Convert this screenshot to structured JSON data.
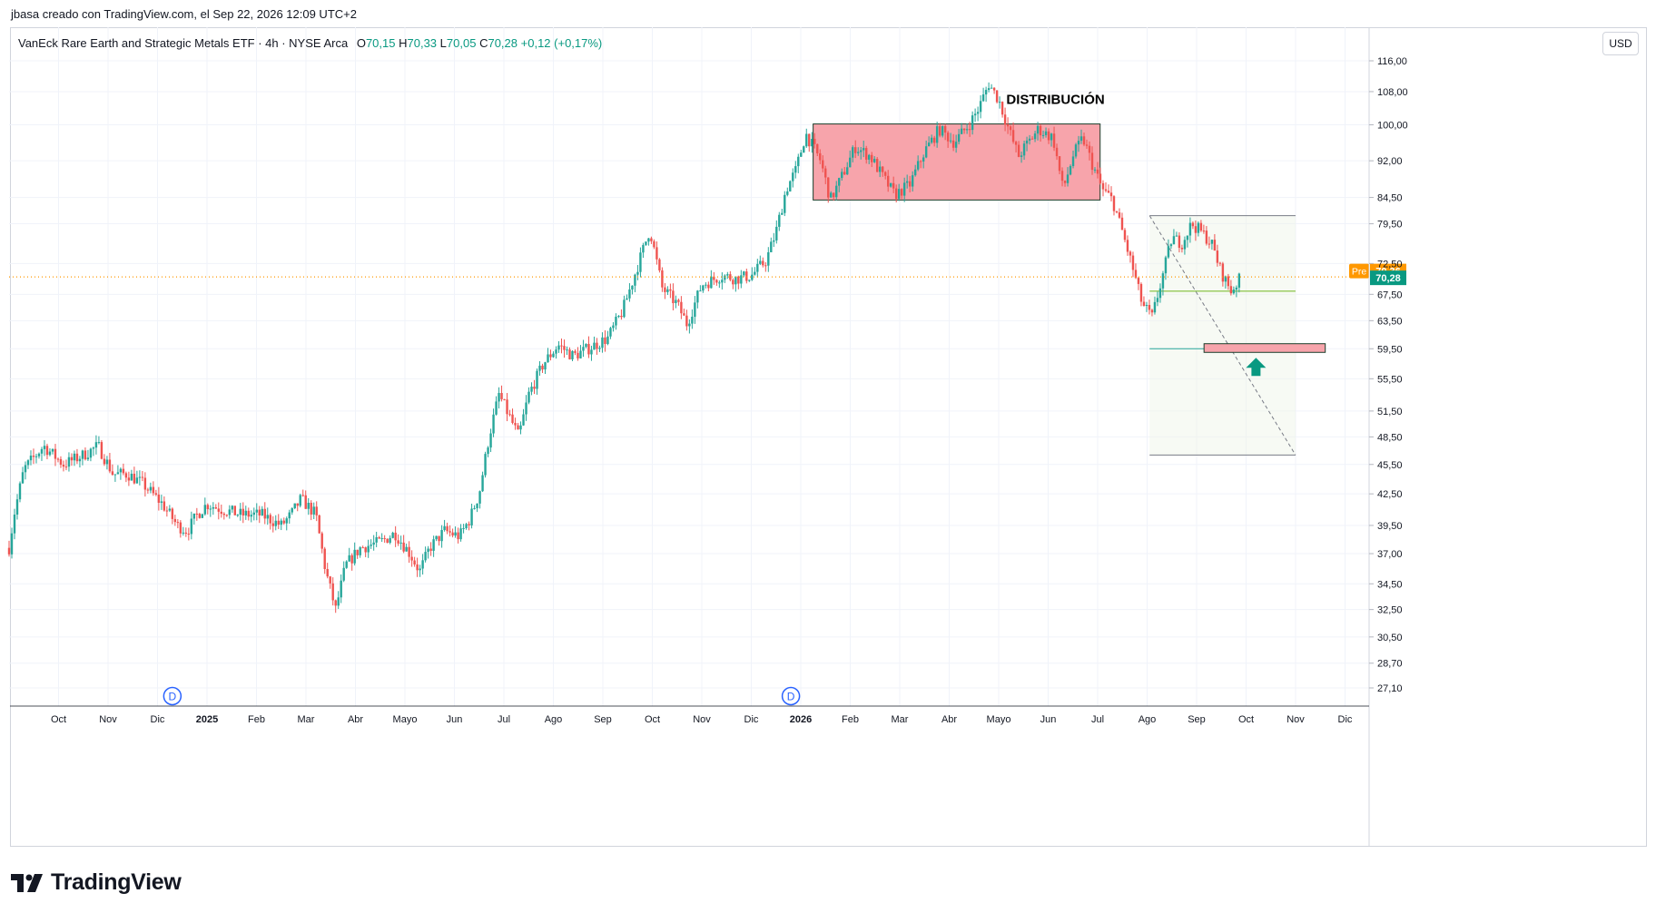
{
  "header": {
    "attribution": "jbasa creado con TradingView.com, el Sep 22, 2026 12:09 UTC+2"
  },
  "legend": {
    "symbol": "VanEck Rare Earth and Strategic Metals ETF · 4h · NYSE Arca",
    "o_label": "O",
    "o_value": "70,15",
    "h_label": "H",
    "h_value": "70,33",
    "l_label": "L",
    "l_value": "70,05",
    "c_label": "C",
    "c_value": "70,28",
    "change": "+0,12 (+0,17%)"
  },
  "currency_button": "USD",
  "price_tags": {
    "pre_label": "Pre",
    "pre_value": "70,36",
    "last_value": "70,28"
  },
  "annotations": {
    "distribution_label": "DISTRIBUCIÓN",
    "dividend_marker": "D"
  },
  "footer": {
    "logo_text": "TradingView"
  },
  "colors": {
    "up": "#26a69a",
    "down": "#ef5350",
    "zone_fill": "#f7a4ab",
    "pre": "#ff9800",
    "last": "#089981",
    "dividend": "#2962ff",
    "target_arrow": "#089981",
    "target_line": "#9ccc65",
    "entry_line": "#26a69a"
  },
  "chart_data": {
    "type": "candlestick",
    "interval": "4h",
    "currency": "USD",
    "y_scale": "log",
    "ylim": [
      27.1,
      116.0
    ],
    "y_ticks": [
      116.0,
      108.0,
      100.0,
      92.0,
      84.5,
      79.5,
      72.5,
      67.5,
      63.5,
      59.5,
      55.5,
      51.5,
      48.5,
      45.5,
      42.5,
      39.5,
      37.0,
      34.5,
      32.5,
      30.5,
      28.7,
      27.1
    ],
    "y_tick_labels": [
      "116,00",
      "108,00",
      "100,00",
      "92,00",
      "84,50",
      "79,50",
      "72,50",
      "67,50",
      "63,50",
      "59,50",
      "55,50",
      "51,50",
      "48,50",
      "45,50",
      "42,50",
      "39,50",
      "37,00",
      "34,50",
      "32,50",
      "30,50",
      "28,70",
      "27,10"
    ],
    "x_tick_labels": [
      {
        "label": "Oct",
        "t": 0.5,
        "bold": false
      },
      {
        "label": "Nov",
        "t": 1.5,
        "bold": false
      },
      {
        "label": "Dic",
        "t": 2.5,
        "bold": false
      },
      {
        "label": "2025",
        "t": 3.5,
        "bold": true
      },
      {
        "label": "Feb",
        "t": 4.5,
        "bold": false
      },
      {
        "label": "Mar",
        "t": 5.5,
        "bold": false
      },
      {
        "label": "Abr",
        "t": 6.5,
        "bold": false
      },
      {
        "label": "Mayo",
        "t": 7.5,
        "bold": false
      },
      {
        "label": "Jun",
        "t": 8.5,
        "bold": false
      },
      {
        "label": "Jul",
        "t": 9.5,
        "bold": false
      },
      {
        "label": "Ago",
        "t": 10.5,
        "bold": false
      },
      {
        "label": "Sep",
        "t": 11.5,
        "bold": false
      },
      {
        "label": "Oct",
        "t": 12.5,
        "bold": false
      },
      {
        "label": "Nov",
        "t": 13.5,
        "bold": false
      },
      {
        "label": "Dic",
        "t": 14.5,
        "bold": false
      },
      {
        "label": "2026",
        "t": 15.5,
        "bold": true
      },
      {
        "label": "Feb",
        "t": 16.5,
        "bold": false
      },
      {
        "label": "Mar",
        "t": 17.5,
        "bold": false
      },
      {
        "label": "Abr",
        "t": 18.5,
        "bold": false
      },
      {
        "label": "Mayo",
        "t": 19.5,
        "bold": false
      },
      {
        "label": "Jun",
        "t": 20.5,
        "bold": false
      },
      {
        "label": "Jul",
        "t": 21.5,
        "bold": false
      },
      {
        "label": "Ago",
        "t": 22.5,
        "bold": false
      },
      {
        "label": "Sep",
        "t": 23.5,
        "bold": false
      },
      {
        "label": "Oct",
        "t": 24.5,
        "bold": false
      },
      {
        "label": "Nov",
        "t": 25.5,
        "bold": false
      },
      {
        "label": "Dic",
        "t": 26.5,
        "bold": false
      }
    ],
    "price_path": [
      [
        -0.5,
        37.5
      ],
      [
        -0.4,
        40.5
      ],
      [
        -0.2,
        45.0
      ],
      [
        0.2,
        47.5
      ],
      [
        0.6,
        45.5
      ],
      [
        1.0,
        46.5
      ],
      [
        1.3,
        47.5
      ],
      [
        1.6,
        44.5
      ],
      [
        1.9,
        44.5
      ],
      [
        2.2,
        43.5
      ],
      [
        2.6,
        41.5
      ],
      [
        2.9,
        39.5
      ],
      [
        3.1,
        39.0
      ],
      [
        3.3,
        40.5
      ],
      [
        3.5,
        41.5
      ],
      [
        3.8,
        41.0
      ],
      [
        4.2,
        40.5
      ],
      [
        4.6,
        40.5
      ],
      [
        5.0,
        39.5
      ],
      [
        5.2,
        40.5
      ],
      [
        5.4,
        42.0
      ],
      [
        5.7,
        40.5
      ],
      [
        5.9,
        35.5
      ],
      [
        6.1,
        32.5
      ],
      [
        6.3,
        36.0
      ],
      [
        6.6,
        37.5
      ],
      [
        7.0,
        38.0
      ],
      [
        7.3,
        38.8
      ],
      [
        7.6,
        37.0
      ],
      [
        7.8,
        35.5
      ],
      [
        8.0,
        37.5
      ],
      [
        8.3,
        39.0
      ],
      [
        8.6,
        38.5
      ],
      [
        8.8,
        40.0
      ],
      [
        9.0,
        42.5
      ],
      [
        9.2,
        48.5
      ],
      [
        9.4,
        53.5
      ],
      [
        9.6,
        51.0
      ],
      [
        9.8,
        48.5
      ],
      [
        10.0,
        53.5
      ],
      [
        10.3,
        57.5
      ],
      [
        10.6,
        60.0
      ],
      [
        10.9,
        58.5
      ],
      [
        11.2,
        59.5
      ],
      [
        11.6,
        61.0
      ],
      [
        11.9,
        65.0
      ],
      [
        12.2,
        72.0
      ],
      [
        12.45,
        78.5
      ],
      [
        12.7,
        68.5
      ],
      [
        13.0,
        66.0
      ],
      [
        13.2,
        63.0
      ],
      [
        13.5,
        69.0
      ],
      [
        13.9,
        70.5
      ],
      [
        14.2,
        70.0
      ],
      [
        14.5,
        70.5
      ],
      [
        14.8,
        73.0
      ],
      [
        15.0,
        78.0
      ],
      [
        15.2,
        86.0
      ],
      [
        15.4,
        90.0
      ],
      [
        15.6,
        98.0
      ],
      [
        15.9,
        92.0
      ],
      [
        16.1,
        84.0
      ],
      [
        16.3,
        88.0
      ],
      [
        16.6,
        95.0
      ],
      [
        16.9,
        93.0
      ],
      [
        17.2,
        88.0
      ],
      [
        17.4,
        85.0
      ],
      [
        17.7,
        87.0
      ],
      [
        18.0,
        94.0
      ],
      [
        18.3,
        99.0
      ],
      [
        18.6,
        96.0
      ],
      [
        18.9,
        100.0
      ],
      [
        19.1,
        104.0
      ],
      [
        19.3,
        110.0
      ],
      [
        19.5,
        106.0
      ],
      [
        19.7,
        99.0
      ],
      [
        19.9,
        93.0
      ],
      [
        20.1,
        96.0
      ],
      [
        20.3,
        99.0
      ],
      [
        20.6,
        97.0
      ],
      [
        20.8,
        86.0
      ],
      [
        21.0,
        93.0
      ],
      [
        21.2,
        97.0
      ],
      [
        21.4,
        91.0
      ],
      [
        21.6,
        86.0
      ],
      [
        21.8,
        84.0
      ],
      [
        22.0,
        78.0
      ],
      [
        22.2,
        72.0
      ],
      [
        22.4,
        66.0
      ],
      [
        22.6,
        64.0
      ],
      [
        22.8,
        70.0
      ],
      [
        23.0,
        77.0
      ],
      [
        23.2,
        76.0
      ],
      [
        23.4,
        79.5
      ],
      [
        23.6,
        78.0
      ],
      [
        23.8,
        76.0
      ],
      [
        24.0,
        71.0
      ],
      [
        24.2,
        68.0
      ],
      [
        24.4,
        70.28
      ]
    ],
    "annotations": {
      "distribution_zone": {
        "t0": 15.75,
        "t1": 21.55,
        "price_low": 84.0,
        "price_high": 100.2
      },
      "dividends_t": [
        2.8,
        15.3
      ],
      "projection": {
        "t0": 22.55,
        "t1": 25.5,
        "price_top": 81.0,
        "price_bottom": 46.5,
        "price_entry": 68.0,
        "price_target": 59.5
      },
      "target_zone": {
        "t0": 23.65,
        "t1": 26.1,
        "price_low": 59.0,
        "price_high": 60.2
      },
      "target_arrow_t": 24.7,
      "last_price": 70.28,
      "pre_price": 70.36
    }
  }
}
